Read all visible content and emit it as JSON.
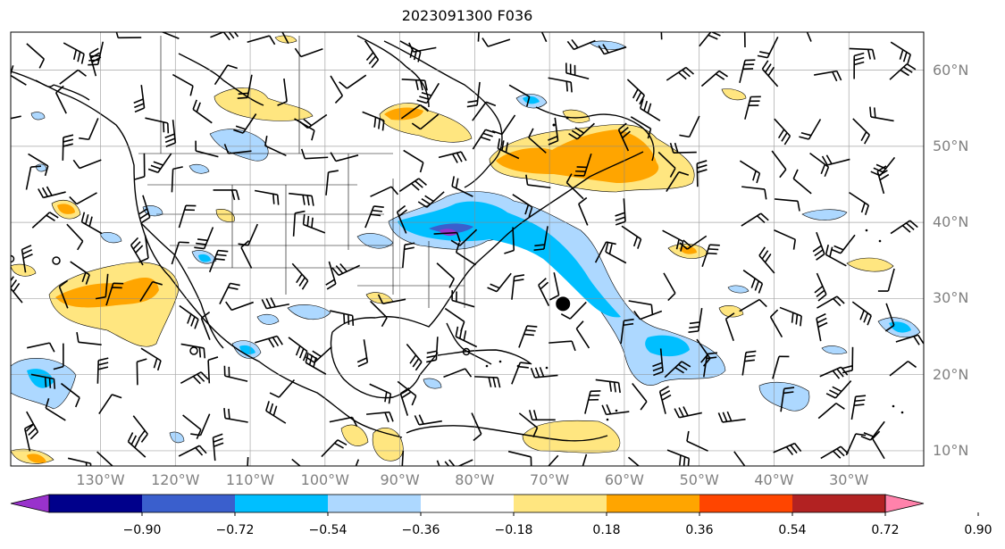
{
  "title": "2023091300 F036",
  "lat_labels": [
    {
      "text": "60°N",
      "lat": 60
    },
    {
      "text": "50°N",
      "lat": 50
    },
    {
      "text": "40°N",
      "lat": 40
    },
    {
      "text": "30°N",
      "lat": 30
    },
    {
      "text": "20°N",
      "lat": 20
    },
    {
      "text": "10°N",
      "lat": 10
    }
  ],
  "lon_labels": [
    {
      "text": "130°W",
      "lon": -130
    },
    {
      "text": "120°W",
      "lon": -120
    },
    {
      "text": "110°W",
      "lon": -110
    },
    {
      "text": "100°W",
      "lon": -100
    },
    {
      "text": "90°W",
      "lon": -90
    },
    {
      "text": "80°W",
      "lon": -80
    },
    {
      "text": "70°W",
      "lon": -70
    },
    {
      "text": "60°W",
      "lon": -60
    },
    {
      "text": "50°W",
      "lon": -50
    },
    {
      "text": "40°W",
      "lon": -40
    },
    {
      "text": "30°W",
      "lon": -30
    }
  ],
  "extent": {
    "lon_min": -142,
    "lon_max": -20,
    "lat_min": 8,
    "lat_max": 65
  },
  "colorbar": {
    "colors": [
      "#9932cc",
      "#00008b",
      "#3a5fcd",
      "#00bfff",
      "#add8ff",
      "#ffffff",
      "#ffe680",
      "#ffa500",
      "#ff4500",
      "#b22222",
      "#ff82ab"
    ],
    "ticks": [
      "−0.90",
      "−0.72",
      "−0.54",
      "−0.36",
      "−0.18",
      "0.18",
      "0.36",
      "0.54",
      "0.72",
      "0.90"
    ]
  },
  "storm_marker": {
    "lon": -68.2,
    "lat": 29.3
  }
}
